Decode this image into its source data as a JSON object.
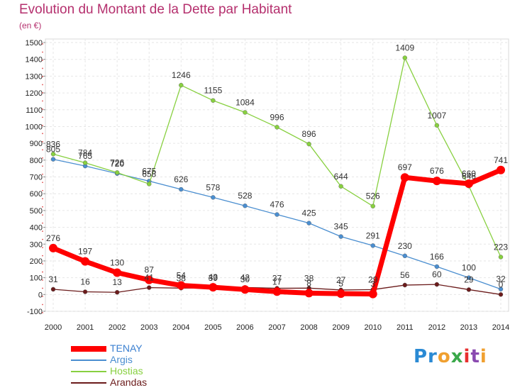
{
  "chart_data": {
    "type": "line",
    "title": "Evolution du Montant de la Dette par Habitant",
    "subtitle": "(en €)",
    "x": [
      "2000",
      "2001",
      "2002",
      "2003",
      "2004",
      "2005",
      "2006",
      "2007",
      "2008",
      "2009",
      "2010",
      "2011",
      "2012",
      "2013",
      "2014"
    ],
    "ylim": [
      -100,
      1500
    ],
    "yticks": [
      -100,
      0,
      100,
      200,
      300,
      400,
      500,
      600,
      700,
      800,
      900,
      1000,
      1100,
      1200,
      1300,
      1400,
      1500
    ],
    "grid": true,
    "legend_position": "bottom-left",
    "series": [
      {
        "name": "TENAY",
        "color": "#ff0000",
        "values": [
          276,
          197,
          130,
          87,
          54,
          43,
          30,
          17,
          8,
          5,
          3,
          697,
          676,
          660,
          741
        ],
        "labels": [
          "276",
          "197",
          "130",
          "87",
          "54",
          "43",
          "30",
          "17",
          "8",
          "5",
          "3",
          "697",
          "676",
          "660",
          "741"
        ]
      },
      {
        "name": "Argis",
        "color": "#4a8ed0",
        "values": [
          805,
          765,
          720,
          675,
          626,
          578,
          528,
          476,
          425,
          345,
          291,
          230,
          166,
          100,
          32
        ],
        "labels": [
          "805",
          "765",
          "720",
          "675",
          "626",
          "578",
          "528",
          "476",
          "425",
          "345",
          "291",
          "230",
          "166",
          "100",
          "32"
        ]
      },
      {
        "name": "Hostias",
        "color": "#88d040",
        "values": [
          836,
          784,
          726,
          658,
          1246,
          1155,
          1084,
          996,
          896,
          644,
          526,
          1409,
          1007,
          646,
          223
        ],
        "labels": [
          "836",
          "784",
          "726",
          "658",
          "1246",
          "1155",
          "1084",
          "996",
          "896",
          "644",
          "526",
          "1409",
          "1007",
          "646",
          "223"
        ]
      },
      {
        "name": "Arandas",
        "color": "#6b1b1b",
        "values": [
          31,
          16,
          13,
          41,
          38,
          39,
          42,
          37,
          38,
          27,
          29,
          56,
          60,
          29,
          0
        ],
        "labels": [
          "31",
          "16",
          "13",
          "41",
          "38",
          "39",
          "42",
          "37",
          "38",
          "27",
          "29",
          "56",
          "60",
          "29",
          "0"
        ]
      }
    ]
  },
  "logo": {
    "parts": [
      "Pr",
      "o",
      "x",
      "i",
      "t",
      "i"
    ],
    "colors": [
      "#2a8ad4",
      "#f0a030",
      "#3aa84a",
      "#e83030",
      "#8a4ab0",
      "#f0a030"
    ]
  }
}
